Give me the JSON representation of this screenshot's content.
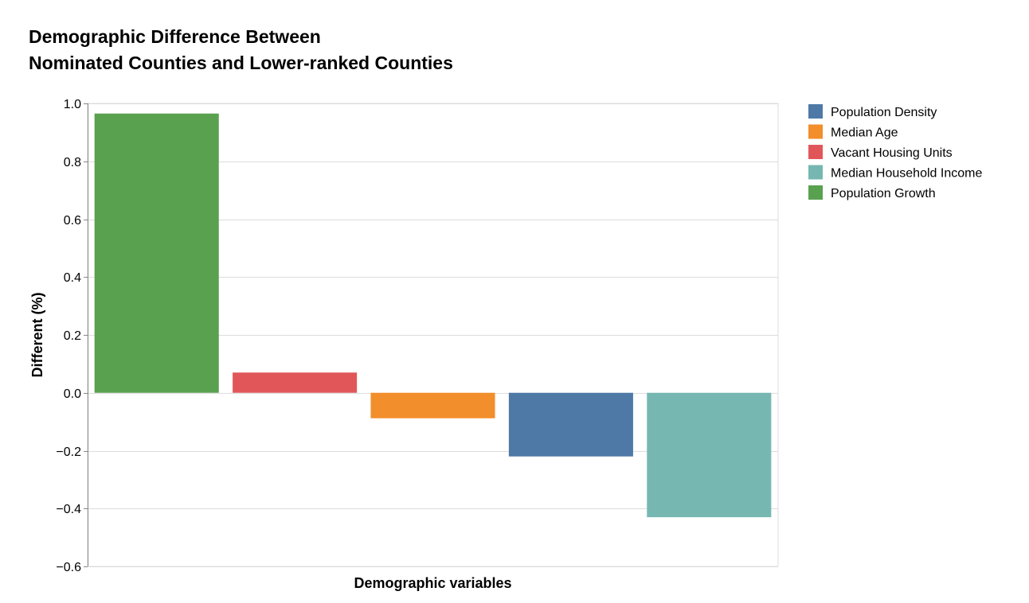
{
  "chart_data": {
    "type": "bar",
    "title": [
      "Demographic Difference Between",
      "Nominated Counties and Lower-ranked Counties"
    ],
    "xlabel": "Demographic variables",
    "ylabel": "Different (%)",
    "ylim": [
      -0.6,
      1.0
    ],
    "yticks": [
      1.0,
      0.8,
      0.6,
      0.4,
      0.2,
      0.0,
      -0.2,
      -0.4,
      -0.6
    ],
    "ytick_labels": [
      "1.0",
      "0.8",
      "0.6",
      "0.4",
      "0.2",
      "0.0",
      "−0.2",
      "−0.4",
      "−0.6"
    ],
    "grid": true,
    "legend_position": "right",
    "categories": [
      "Population Growth",
      "Vacant Housing Units",
      "Median Age",
      "Population Density",
      "Median Household Income"
    ],
    "values": [
      0.965,
      0.07,
      -0.088,
      -0.22,
      -0.43
    ],
    "colors": [
      "#59a14f",
      "#e15759",
      "#f28e2b",
      "#4e79a7",
      "#76b7b2"
    ],
    "legend": [
      {
        "name": "Population Density",
        "color": "#4e79a7"
      },
      {
        "name": "Median Age",
        "color": "#f28e2b"
      },
      {
        "name": "Vacant Housing Units",
        "color": "#e15759"
      },
      {
        "name": "Median Household Income",
        "color": "#76b7b2"
      },
      {
        "name": "Population Growth",
        "color": "#59a14f"
      }
    ]
  }
}
